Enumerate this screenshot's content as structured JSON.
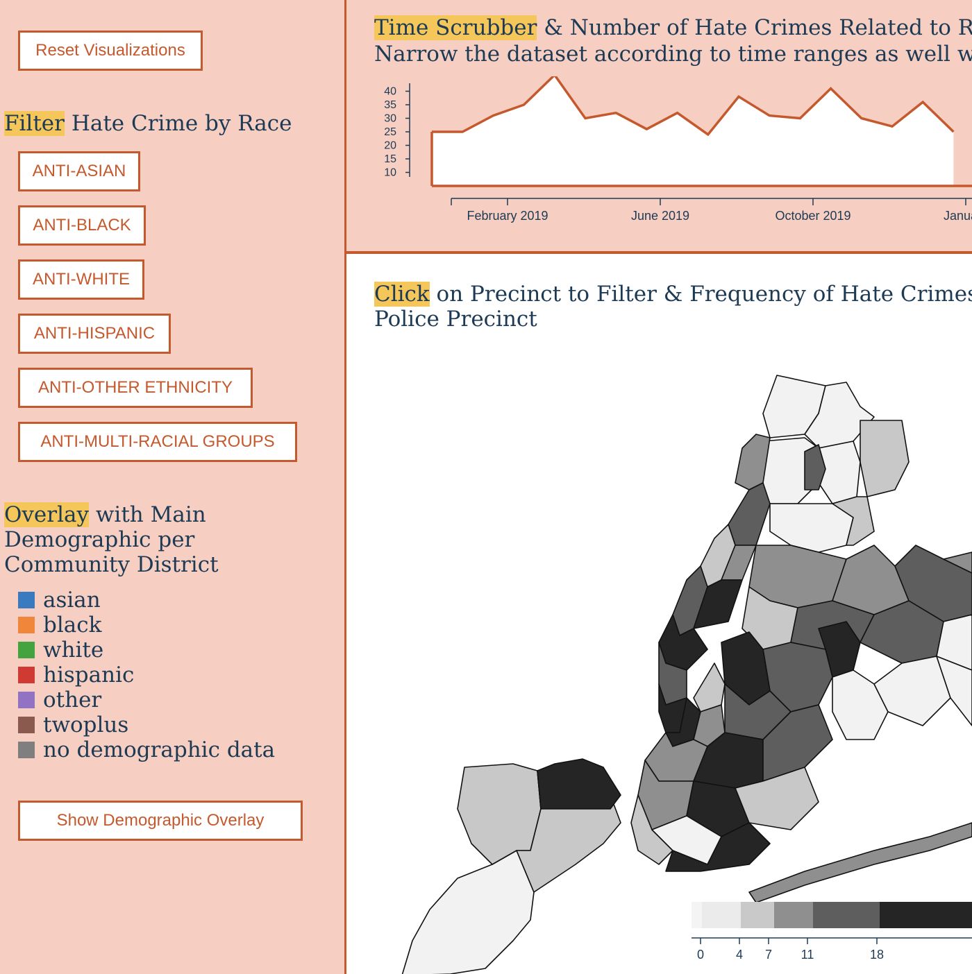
{
  "sidebar": {
    "reset_label": "Reset Visualizations",
    "filter_title": {
      "highlight": "Filter",
      "rest": " Hate Crime by Race"
    },
    "race_buttons": [
      "ANTI-ASIAN",
      "ANTI-BLACK",
      "ANTI-WHITE",
      "ANTI-HISPANIC",
      "ANTI-OTHER ETHNICITY",
      "ANTI-MULTI-RACIAL GROUPS"
    ],
    "overlay_title": {
      "highlight": "Overlay",
      "line1_rest": " with Main",
      "line2": "Demographic per",
      "line3": "Community District"
    },
    "legend": [
      {
        "label": "asian",
        "color": "#3a7abf"
      },
      {
        "label": "black",
        "color": "#f0863a"
      },
      {
        "label": "white",
        "color": "#45a33f"
      },
      {
        "label": "hispanic",
        "color": "#cf3a32"
      },
      {
        "label": "other",
        "color": "#9272c2"
      },
      {
        "label": "twoplus",
        "color": "#8b5a4f"
      },
      {
        "label": "no demographic data",
        "color": "#7f7f7f"
      }
    ],
    "overlay_button": "Show Demographic Overlay"
  },
  "timeline": {
    "title_highlight": "Time Scrubber",
    "title_rest": " & Number of Hate Crimes Related to Race",
    "subtitle": "Narrow the dataset according to time ranges as well with the brush",
    "chart_data": {
      "type": "area",
      "ylabel": "",
      "y_ticks": [
        10,
        15,
        20,
        25,
        30,
        35,
        40
      ],
      "x_tick_labels": [
        "February 2019",
        "June 2019",
        "October 2019",
        "January"
      ],
      "x": [
        "2019-01",
        "2019-02",
        "2019-03",
        "2019-04",
        "2019-05",
        "2019-06",
        "2019-07",
        "2019-08",
        "2019-09",
        "2019-10",
        "2019-11",
        "2019-12",
        "2020-01",
        "2020-02",
        "2020-03",
        "2020-04",
        "2020-05",
        "2020-06"
      ],
      "values": [
        25,
        25,
        31,
        35,
        46,
        30,
        32,
        26,
        32,
        24,
        38,
        31,
        30,
        41,
        30,
        27,
        36,
        25
      ],
      "line_color": "#c4592e"
    }
  },
  "map": {
    "title_highlight": "Click",
    "title_rest": " on Precinct to Filter & Frequency of Hate Crimes Per",
    "title_line2": "Police Precinct",
    "scale_ticks": [
      "0",
      "4",
      "7",
      "11",
      "18"
    ],
    "scale_colors": [
      "#f4f4f4",
      "#ebebeb",
      "#c9c9c9",
      "#8f8f8f",
      "#5e5e5e",
      "#252525"
    ]
  }
}
